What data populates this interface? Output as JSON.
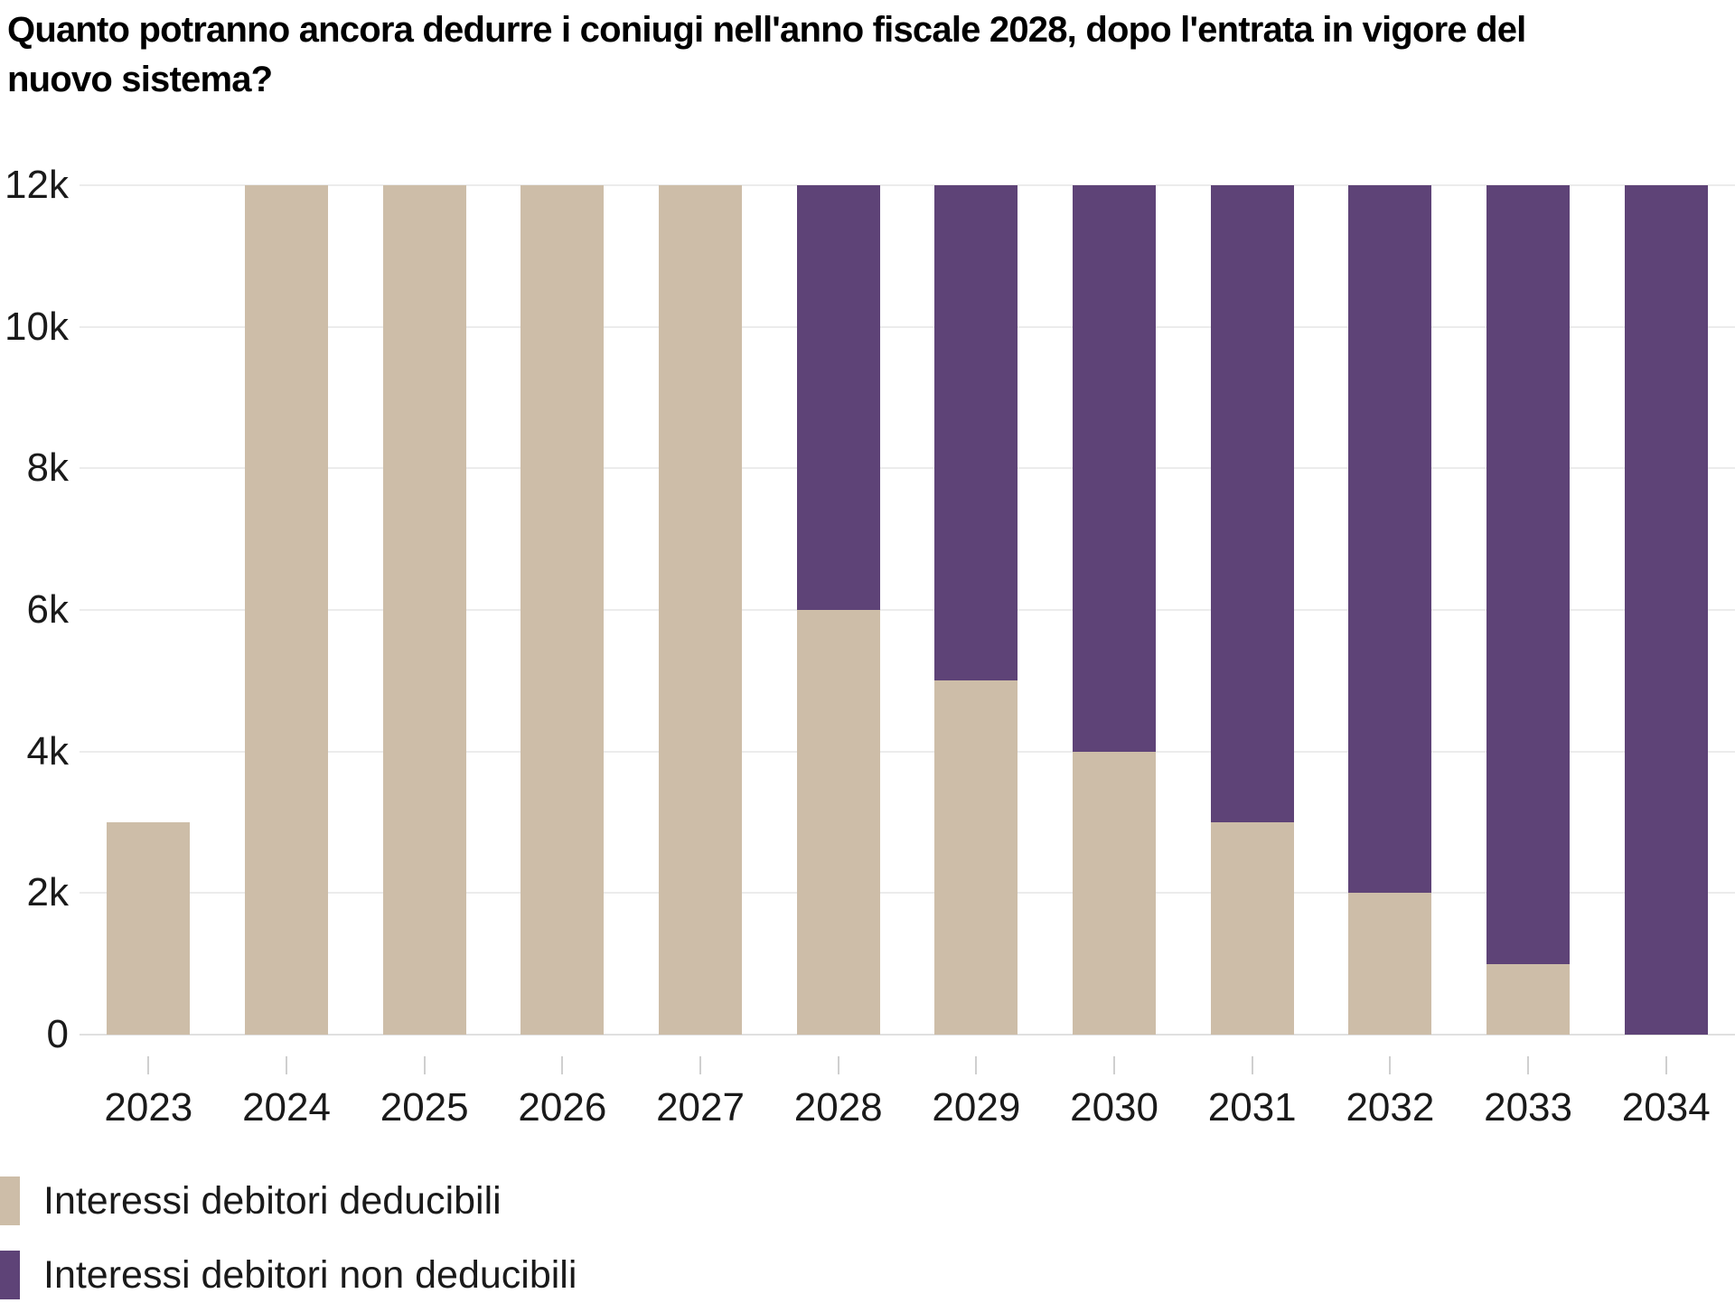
{
  "title": "Quanto potranno ancora dedurre i coniugi nell'anno fiscale 2028, dopo l'entrata in vigore del nuovo sistema?",
  "colors": {
    "deductible": "#cdbda8",
    "non_deductible": "#5e4377",
    "gridline": "#ececec",
    "baseline": "#e0e0e0",
    "tick": "#cfcfcf",
    "text": "#1a1a1a",
    "title_text": "#000000",
    "background": "#ffffff"
  },
  "chart_data": {
    "type": "bar",
    "stacked": true,
    "title": "Quanto potranno ancora dedurre i coniugi nell'anno fiscale 2028, dopo l'entrata in vigore del nuovo sistema?",
    "xlabel": "",
    "ylabel": "",
    "categories": [
      "2023",
      "2024",
      "2025",
      "2026",
      "2027",
      "2028",
      "2029",
      "2030",
      "2031",
      "2032",
      "2033",
      "2034"
    ],
    "series": [
      {
        "name": "Interessi debitori deducibili",
        "color": "#cdbda8",
        "values": [
          3000,
          12000,
          12000,
          12000,
          12000,
          6000,
          5000,
          4000,
          3000,
          2000,
          1000,
          0
        ]
      },
      {
        "name": "Interessi debitori non deducibili",
        "color": "#5e4377",
        "values": [
          0,
          0,
          0,
          0,
          0,
          6000,
          7000,
          8000,
          9000,
          10000,
          11000,
          12000
        ]
      }
    ],
    "ylim": [
      0,
      12000
    ],
    "yticks": [
      {
        "value": 0,
        "label": "0"
      },
      {
        "value": 2000,
        "label": "2k"
      },
      {
        "value": 4000,
        "label": "4k"
      },
      {
        "value": 6000,
        "label": "6k"
      },
      {
        "value": 8000,
        "label": "8k"
      },
      {
        "value": 10000,
        "label": "10k"
      },
      {
        "value": 12000,
        "label": "12k"
      }
    ],
    "grid": true,
    "legend_position": "bottom-left"
  },
  "legend": {
    "items": [
      {
        "label": "Interessi debitori deducibili",
        "color": "#cdbda8"
      },
      {
        "label": "Interessi debitori non deducibili",
        "color": "#5e4377"
      }
    ]
  }
}
